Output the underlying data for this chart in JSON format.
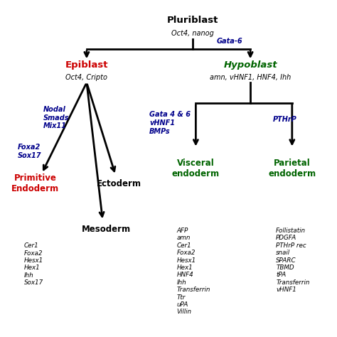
{
  "background_color": "#ffffff",
  "figsize": [
    4.74,
    4.74
  ],
  "dpi": 100,
  "title": "Pluriblast",
  "title_sub": "Oct4, nanog",
  "gata6": "Gata-6",
  "epiblast": "Epiblast",
  "epiblast_sub": "Oct4, Cripto",
  "hypoblast": "Hypoblast",
  "hypoblast_sub": "amn, vHNF1, HNF4, Ihh",
  "nodal": "Nodal\nSmads\nMix11",
  "foxa2": "Foxa2\nSox17",
  "gata46": "Gata 4 & 6\nvHNF1\nBMPs",
  "pthrp": "PTHrP",
  "primitive": "Primitive\nEndoderm",
  "primitive_list": "Cer1\nFoxa2\nHesx1\nHex1\nIhh\nSox17",
  "ectoderm": "Ectoderm",
  "mesoderm": "Mesoderm",
  "visceral": "Visceral\nendoderm",
  "visceral_list": "AFP\namn\nCer1\nFoxa2\nHesx1\nHex1\nHNF4\nIhh\nTransferrin\nTtr\nuPA\nVillin",
  "parietal": "Parietal\nendoderm",
  "parietal_list": "Follistatin\nPDGFA\nPTHrP rec\nsnail\nSPARC\nTBMD\ntPA\nTransferrin\nvHNF1",
  "black": "#000000",
  "red": "#CC0000",
  "green": "#006400",
  "blue": "#00008B"
}
